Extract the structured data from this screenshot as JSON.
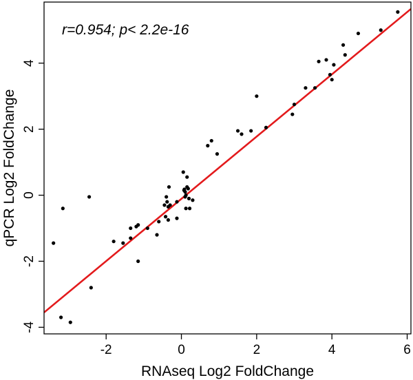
{
  "chart_data": {
    "type": "scatter",
    "xlabel": "RNAseq Log2 FoldChange",
    "ylabel": "qPCR Log2 FoldChange",
    "annotation": "r=0.954; p< 2.2e-16",
    "xlim": [
      -3.65,
      6.1
    ],
    "ylim": [
      -4.2,
      5.85
    ],
    "x_ticks": [
      -2,
      0,
      2,
      4,
      6
    ],
    "y_ticks": [
      -4,
      -2,
      0,
      2,
      4
    ],
    "x_tick_labels": [
      "-2",
      "0",
      "2",
      "4",
      "6"
    ],
    "y_tick_labels": [
      "-4",
      "-2",
      "0",
      "2",
      "4"
    ],
    "point_color": "#000000",
    "line_color": "#e31a1c",
    "regression_line": {
      "slope": 0.943,
      "intercept": -0.11
    },
    "points": [
      [
        -3.4,
        -1.45
      ],
      [
        -3.2,
        -3.7
      ],
      [
        -3.15,
        -0.4
      ],
      [
        -2.95,
        -3.85
      ],
      [
        -2.45,
        -0.05
      ],
      [
        -2.4,
        -2.8
      ],
      [
        -1.8,
        -1.4
      ],
      [
        -1.55,
        -1.45
      ],
      [
        -1.35,
        -1.3
      ],
      [
        -1.35,
        -1.0
      ],
      [
        -1.2,
        -0.95
      ],
      [
        -1.15,
        -0.9
      ],
      [
        -1.15,
        -2.0
      ],
      [
        -0.9,
        -1.0
      ],
      [
        -0.65,
        -1.2
      ],
      [
        -0.6,
        -0.8
      ],
      [
        -0.45,
        -0.3
      ],
      [
        -0.42,
        -0.65
      ],
      [
        -0.4,
        -0.05
      ],
      [
        -0.38,
        -0.2
      ],
      [
        -0.35,
        -0.35
      ],
      [
        -0.35,
        -0.75
      ],
      [
        -0.33,
        0.25
      ],
      [
        -0.3,
        -0.3
      ],
      [
        -0.12,
        -0.2
      ],
      [
        -0.12,
        -0.7
      ],
      [
        0.05,
        0.7
      ],
      [
        0.07,
        0.15
      ],
      [
        0.08,
        0.18
      ],
      [
        0.1,
        -0.05
      ],
      [
        0.1,
        0.1
      ],
      [
        0.12,
        0.0
      ],
      [
        0.12,
        -0.4
      ],
      [
        0.15,
        0.25
      ],
      [
        0.15,
        0.55
      ],
      [
        0.18,
        0.2
      ],
      [
        0.2,
        -0.1
      ],
      [
        0.22,
        -0.4
      ],
      [
        0.3,
        -0.15
      ],
      [
        0.7,
        1.5
      ],
      [
        0.8,
        1.65
      ],
      [
        0.95,
        1.25
      ],
      [
        1.5,
        1.95
      ],
      [
        1.6,
        1.85
      ],
      [
        1.85,
        1.95
      ],
      [
        2.0,
        3.0
      ],
      [
        2.25,
        2.05
      ],
      [
        2.95,
        2.45
      ],
      [
        3.0,
        2.75
      ],
      [
        3.3,
        3.25
      ],
      [
        3.55,
        3.25
      ],
      [
        3.65,
        4.05
      ],
      [
        3.85,
        4.1
      ],
      [
        3.95,
        3.65
      ],
      [
        4.0,
        3.5
      ],
      [
        4.05,
        3.95
      ],
      [
        4.3,
        4.55
      ],
      [
        4.35,
        4.25
      ],
      [
        4.7,
        4.9
      ],
      [
        5.3,
        5.0
      ],
      [
        5.75,
        5.55
      ]
    ]
  }
}
